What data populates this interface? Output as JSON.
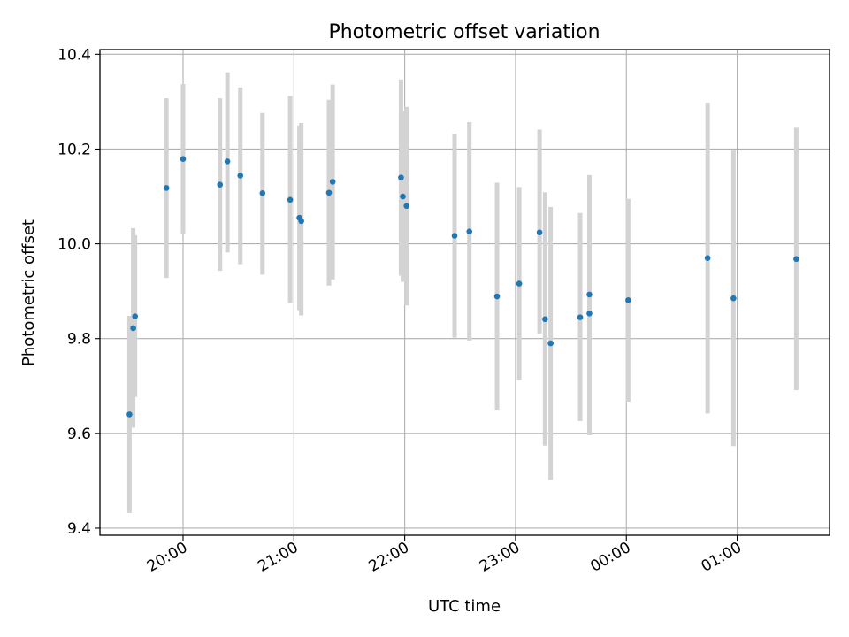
{
  "chart_data": {
    "type": "scatter",
    "title": "Photometric offset variation",
    "xlabel": "UTC time",
    "ylabel": "Photometric offset",
    "xlim": [
      "2000-01-01T19:15",
      "2000-01-02T01:50"
    ],
    "ylim": [
      9.385,
      10.41
    ],
    "grid": true,
    "x_ticks": [
      {
        "t": "2000-01-01T20:00",
        "label": "20:00"
      },
      {
        "t": "2000-01-01T21:00",
        "label": "21:00"
      },
      {
        "t": "2000-01-01T22:00",
        "label": "22:00"
      },
      {
        "t": "2000-01-01T23:00",
        "label": "23:00"
      },
      {
        "t": "2000-01-02T00:00",
        "label": "00:00"
      },
      {
        "t": "2000-01-02T01:00",
        "label": "01:00"
      }
    ],
    "y_ticks": [
      {
        "v": 9.4,
        "label": "9.4"
      },
      {
        "v": 9.6,
        "label": "9.6"
      },
      {
        "v": 9.8,
        "label": "9.8"
      },
      {
        "v": 10.0,
        "label": "10.0"
      },
      {
        "v": 10.2,
        "label": "10.2"
      },
      {
        "v": 10.4,
        "label": "10.4"
      }
    ],
    "colors": {
      "marker": "#1f77b4",
      "errorbar": "#d3d3d3",
      "grid": "#b0b0b0"
    },
    "series": [
      {
        "points": [
          {
            "t": "2000-01-01T19:31",
            "y": 9.64,
            "lo": 9.432,
            "hi": 9.848
          },
          {
            "t": "2000-01-01T19:33",
            "y": 9.822,
            "lo": 9.612,
            "hi": 10.033
          },
          {
            "t": "2000-01-01T19:34",
            "y": 9.847,
            "lo": 9.677,
            "hi": 10.018
          },
          {
            "t": "2000-01-01T19:51",
            "y": 10.118,
            "lo": 9.928,
            "hi": 10.307
          },
          {
            "t": "2000-01-01T20:00",
            "y": 10.179,
            "lo": 10.022,
            "hi": 10.337
          },
          {
            "t": "2000-01-01T20:20",
            "y": 10.125,
            "lo": 9.943,
            "hi": 10.307
          },
          {
            "t": "2000-01-01T20:24",
            "y": 10.174,
            "lo": 9.982,
            "hi": 10.362
          },
          {
            "t": "2000-01-01T20:31",
            "y": 10.144,
            "lo": 9.957,
            "hi": 10.33
          },
          {
            "t": "2000-01-01T20:43",
            "y": 10.107,
            "lo": 9.935,
            "hi": 10.276
          },
          {
            "t": "2000-01-01T20:58",
            "y": 10.093,
            "lo": 9.875,
            "hi": 10.312
          },
          {
            "t": "2000-01-01T21:03",
            "y": 10.055,
            "lo": 9.86,
            "hi": 10.25
          },
          {
            "t": "2000-01-01T21:04",
            "y": 10.048,
            "lo": 9.849,
            "hi": 10.255
          },
          {
            "t": "2000-01-01T21:19",
            "y": 10.108,
            "lo": 9.912,
            "hi": 10.304
          },
          {
            "t": "2000-01-01T21:21",
            "y": 10.131,
            "lo": 9.925,
            "hi": 10.336
          },
          {
            "t": "2000-01-01T21:58",
            "y": 10.14,
            "lo": 9.933,
            "hi": 10.347
          },
          {
            "t": "2000-01-01T21:59",
            "y": 10.1,
            "lo": 9.92,
            "hi": 10.28
          },
          {
            "t": "2000-01-01T22:01",
            "y": 10.08,
            "lo": 9.87,
            "hi": 10.289
          },
          {
            "t": "2000-01-01T22:27",
            "y": 10.017,
            "lo": 9.802,
            "hi": 10.232
          },
          {
            "t": "2000-01-01T22:35",
            "y": 10.026,
            "lo": 9.796,
            "hi": 10.257
          },
          {
            "t": "2000-01-01T22:50",
            "y": 9.889,
            "lo": 9.65,
            "hi": 10.129
          },
          {
            "t": "2000-01-01T23:02",
            "y": 9.916,
            "lo": 9.712,
            "hi": 10.12
          },
          {
            "t": "2000-01-01T23:13",
            "y": 10.024,
            "lo": 9.81,
            "hi": 10.241
          },
          {
            "t": "2000-01-01T23:16",
            "y": 9.841,
            "lo": 9.574,
            "hi": 10.109
          },
          {
            "t": "2000-01-01T23:19",
            "y": 9.79,
            "lo": 9.502,
            "hi": 10.078
          },
          {
            "t": "2000-01-01T23:35",
            "y": 9.845,
            "lo": 9.626,
            "hi": 10.065
          },
          {
            "t": "2000-01-01T23:40",
            "y": 9.893,
            "lo": 9.64,
            "hi": 10.145
          },
          {
            "t": "2000-01-01T23:40",
            "y": 9.853,
            "lo": 9.596,
            "hi": 10.111
          },
          {
            "t": "2000-01-02T00:01",
            "y": 9.881,
            "lo": 9.667,
            "hi": 10.095
          },
          {
            "t": "2000-01-02T00:44",
            "y": 9.97,
            "lo": 9.642,
            "hi": 10.298
          },
          {
            "t": "2000-01-02T00:58",
            "y": 9.885,
            "lo": 9.573,
            "hi": 10.197
          },
          {
            "t": "2000-01-02T01:32",
            "y": 9.968,
            "lo": 9.691,
            "hi": 10.245
          }
        ]
      }
    ]
  }
}
